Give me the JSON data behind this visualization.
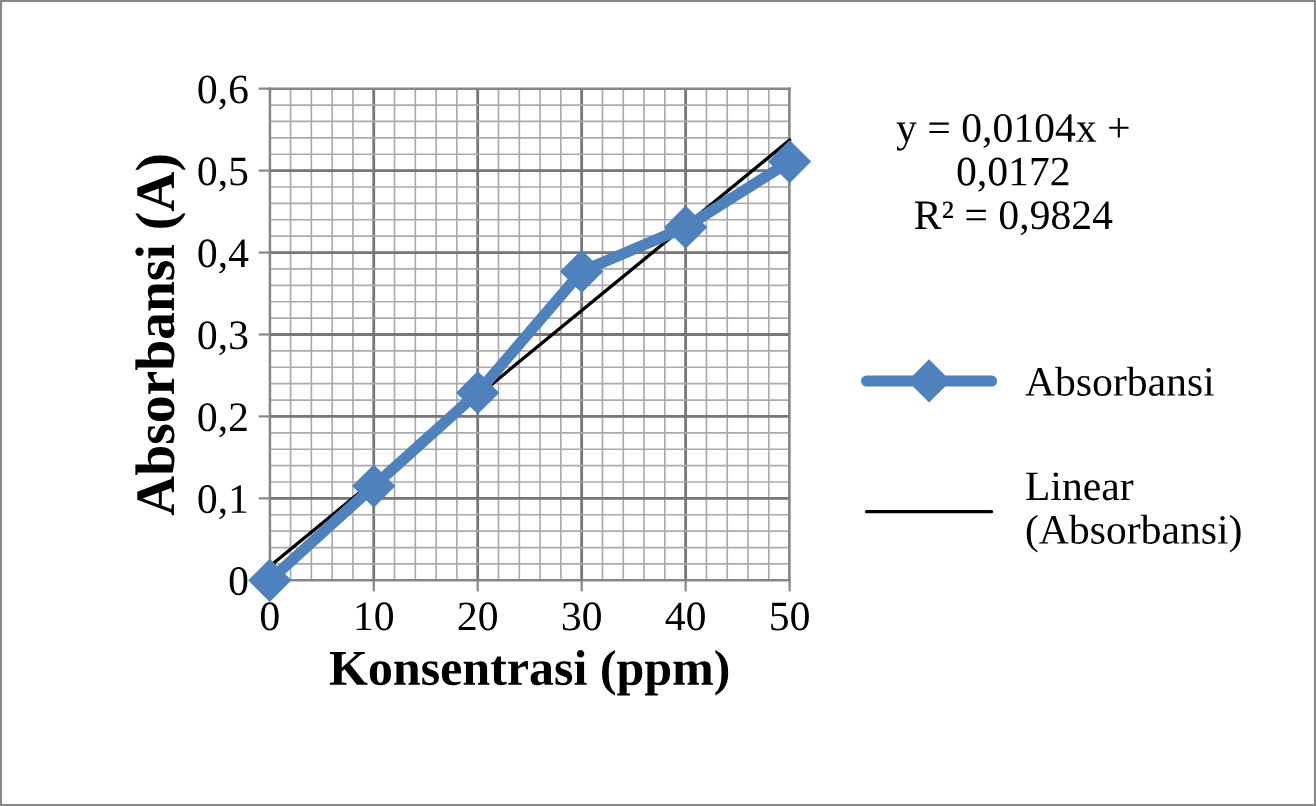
{
  "chart_data": {
    "type": "line",
    "xlabel": "Konsentrasi (ppm)",
    "ylabel": "Absorbansi (A)",
    "xlim": [
      0,
      50
    ],
    "ylim": [
      0,
      0.6
    ],
    "xticks": [
      0,
      10,
      20,
      30,
      40,
      50
    ],
    "yticks": [
      {
        "value": 0,
        "label": "0"
      },
      {
        "value": 0.1,
        "label": "0,1"
      },
      {
        "value": 0.2,
        "label": "0,2"
      },
      {
        "value": 0.3,
        "label": "0,3"
      },
      {
        "value": 0.4,
        "label": "0,4"
      },
      {
        "value": 0.5,
        "label": "0,5"
      },
      {
        "value": 0.6,
        "label": "0,6"
      }
    ],
    "grid": true,
    "legend": "right",
    "line_style": "solid",
    "annotations": [
      "y = 0,0104x +\n0,0172\nR² = 0,9824"
    ],
    "series": [
      {
        "name": "Absorbansi",
        "color": "#4f81bd",
        "marker": "diamond",
        "x": [
          0,
          10,
          20,
          30,
          40,
          50
        ],
        "values": [
          0,
          0.115,
          0.229,
          0.377,
          0.431,
          0.511
        ]
      },
      {
        "name": "Linear\n(Absorbansi)",
        "color": "#000000",
        "type": "line",
        "marker": "none",
        "x": [
          0,
          50
        ],
        "values": [
          0.0172,
          0.5372
        ]
      }
    ]
  }
}
